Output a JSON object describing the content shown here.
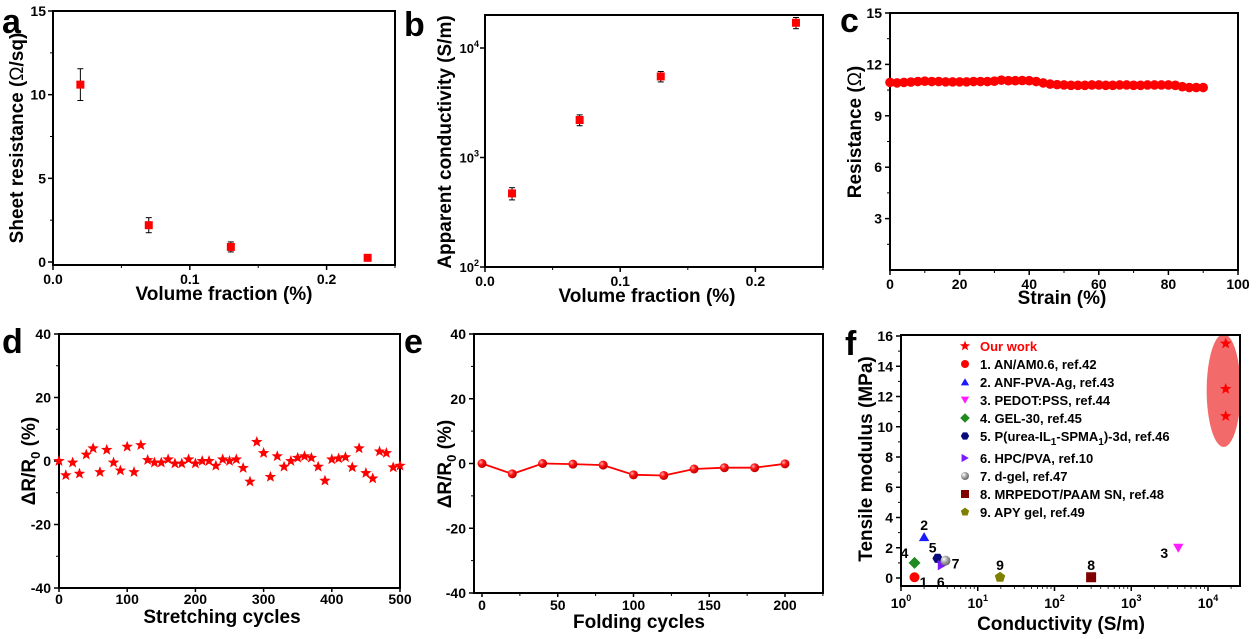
{
  "chart_data": [
    {
      "panel": "a",
      "type": "scatter",
      "title": "",
      "xlabel": "Volume fraction (%)",
      "ylabel": "Sheet resistance (Ω/sq)",
      "xlim": [
        0,
        0.25
      ],
      "ylim": [
        0,
        15
      ],
      "xticks": [
        0.0,
        0.1,
        0.2
      ],
      "xtick_labels": [
        "0.0",
        "0.1",
        "0.2"
      ],
      "yticks": [
        0,
        5,
        10,
        15
      ],
      "ytick_labels": [
        "0",
        "5",
        "10",
        "15"
      ],
      "x": [
        0.02,
        0.07,
        0.13,
        0.23
      ],
      "y": [
        10.6,
        2.2,
        0.9,
        0.25
      ],
      "yerr": [
        0.95,
        0.45,
        0.3,
        0.15
      ],
      "marker": "square",
      "color": "#ff0000"
    },
    {
      "panel": "b",
      "type": "scatter",
      "title": "",
      "xlabel": "Volume fraction (%)",
      "ylabel": "Apparent conductivity (S/m)",
      "yscale": "log",
      "xlim": [
        0,
        0.25
      ],
      "ylim": [
        100,
        20000
      ],
      "xticks": [
        0.0,
        0.1,
        0.2
      ],
      "xtick_labels": [
        "0.0",
        "0.1",
        "0.2"
      ],
      "yticks": [
        100,
        1000,
        10000
      ],
      "ytick_labels": [
        [
          "10",
          "2"
        ],
        [
          "10",
          "3"
        ],
        [
          "10",
          "4"
        ]
      ],
      "x": [
        0.02,
        0.07,
        0.13,
        0.23
      ],
      "y": [
        470,
        2200,
        5500,
        17000
      ],
      "yerr_low": [
        410,
        1950,
        4900,
        15000
      ],
      "yerr_high": [
        530,
        2450,
        6100,
        19000
      ],
      "marker": "square",
      "color": "#ff0000"
    },
    {
      "panel": "c",
      "type": "scatter",
      "title": "",
      "xlabel": "Strain (%)",
      "ylabel": "Resistance (Ω)",
      "xlim": [
        0,
        100
      ],
      "ylim": [
        0,
        15
      ],
      "xticks": [
        0,
        20,
        40,
        60,
        80,
        100
      ],
      "xtick_labels": [
        "0",
        "20",
        "40",
        "60",
        "80",
        "100"
      ],
      "yticks": [
        3,
        6,
        9,
        12,
        15
      ],
      "ytick_labels": [
        "3",
        "6",
        "9",
        "12",
        "15"
      ],
      "x": [
        0,
        2,
        4,
        6,
        8,
        10,
        12,
        14,
        16,
        18,
        20,
        22,
        24,
        26,
        28,
        30,
        32,
        34,
        36,
        38,
        40,
        42,
        44,
        46,
        48,
        50,
        52,
        54,
        56,
        58,
        60,
        62,
        64,
        66,
        68,
        70,
        72,
        74,
        76,
        78,
        80,
        82,
        84,
        86,
        88,
        90
      ],
      "y": [
        10.95,
        10.92,
        10.95,
        10.97,
        11.0,
        11.02,
        11.0,
        11.0,
        10.98,
        10.98,
        10.98,
        10.98,
        11.0,
        11.0,
        11.0,
        11.02,
        11.08,
        11.05,
        11.05,
        11.06,
        11.05,
        11.0,
        10.92,
        10.85,
        10.82,
        10.8,
        10.78,
        10.78,
        10.78,
        10.8,
        10.8,
        10.78,
        10.78,
        10.8,
        10.8,
        10.78,
        10.78,
        10.8,
        10.8,
        10.8,
        10.8,
        10.78,
        10.7,
        10.65,
        10.65,
        10.65
      ],
      "marker": "circle",
      "color": "#ff0000"
    },
    {
      "panel": "d",
      "type": "scatter",
      "title": "",
      "xlabel": "Stretching cycles",
      "ylabel": "ΔR/R0 (%)",
      "xlim": [
        0,
        500
      ],
      "ylim": [
        -40,
        40
      ],
      "xticks": [
        0,
        100,
        200,
        300,
        400,
        500
      ],
      "xtick_labels": [
        "0",
        "100",
        "200",
        "300",
        "400",
        "500"
      ],
      "yticks": [
        -40,
        -20,
        0,
        20,
        40
      ],
      "ytick_labels": [
        "-40",
        "-20",
        "0",
        "20",
        "40"
      ],
      "x": [
        0,
        10,
        20,
        30,
        40,
        50,
        60,
        70,
        80,
        90,
        100,
        110,
        120,
        130,
        140,
        150,
        160,
        170,
        180,
        190,
        200,
        210,
        220,
        230,
        240,
        250,
        260,
        270,
        280,
        290,
        300,
        310,
        320,
        330,
        340,
        350,
        360,
        370,
        380,
        390,
        400,
        410,
        420,
        430,
        440,
        450,
        460,
        470,
        480,
        490,
        500
      ],
      "y": [
        0,
        -4.5,
        -0.5,
        -4,
        2,
        4,
        -3.5,
        3.5,
        -0.5,
        -3,
        4.5,
        -3.5,
        5,
        0.3,
        -0.5,
        -0.5,
        0.5,
        -0.8,
        -0.8,
        0.5,
        -0.8,
        0,
        0,
        -1.5,
        0.5,
        0,
        0.5,
        -2.2,
        -6.5,
        6,
        2.5,
        -5,
        1.5,
        -1.8,
        0,
        1,
        1.5,
        1,
        -1.8,
        -6.2,
        0.5,
        0.8,
        1.2,
        -2,
        4,
        -3.8,
        -5.5,
        3,
        2.5,
        -2,
        -1.5
      ],
      "marker": "star",
      "color": "#ff0000"
    },
    {
      "panel": "e",
      "type": "line",
      "title": "",
      "xlabel": "Folding cycles",
      "ylabel": "ΔR/R0 (%)",
      "xlim": [
        -8,
        225
      ],
      "ylim": [
        -40,
        40
      ],
      "xticks": [
        0,
        50,
        100,
        150,
        200
      ],
      "xtick_labels": [
        "0",
        "50",
        "100",
        "150",
        "200"
      ],
      "yticks": [
        -40,
        -20,
        0,
        20,
        40
      ],
      "ytick_labels": [
        "-40",
        "-20",
        "0",
        "20",
        "40"
      ],
      "x": [
        0,
        20,
        40,
        60,
        80,
        100,
        120,
        140,
        160,
        180,
        200
      ],
      "y": [
        0,
        -3.2,
        0,
        -0.2,
        -0.5,
        -3.5,
        -3.7,
        -1.7,
        -1.3,
        -1.3,
        -0.1
      ],
      "marker": "circle",
      "color": "#ff0000"
    },
    {
      "panel": "f",
      "type": "scatter",
      "title": "",
      "xlabel": "Conductivity (S/m)",
      "ylabel": "Tensile modulus (MPa)",
      "xscale": "log",
      "xlim": [
        1,
        25000
      ],
      "ylim": [
        -0.6,
        16
      ],
      "xticks": [
        1,
        10,
        100,
        1000,
        10000
      ],
      "xtick_labels": [
        [
          "10",
          "0"
        ],
        [
          "10",
          "1"
        ],
        [
          "10",
          "2"
        ],
        [
          "10",
          "3"
        ],
        [
          "10",
          "4"
        ]
      ],
      "yticks": [
        0,
        2,
        4,
        6,
        8,
        10,
        12,
        14,
        16
      ],
      "ytick_labels": [
        "0",
        "2",
        "4",
        "6",
        "8",
        "10",
        "12",
        "14",
        "16"
      ],
      "legend_position": "top-left",
      "highlight_region": {
        "label": "Our work",
        "x_center": 16000,
        "y_range": [
          8.8,
          16
        ],
        "color": "#f25a5a"
      },
      "series": [
        {
          "name": "Our work",
          "label": "",
          "marker": "star",
          "color": "#ff0000",
          "x": [
            17000,
            17000,
            17000
          ],
          "y": [
            15.5,
            12.5,
            10.7
          ]
        },
        {
          "name": "1. AN/AM0.6, ref.42",
          "label": "1",
          "marker": "circle",
          "color": "#ff0000",
          "x": [
            1.5
          ],
          "y": [
            0.05
          ]
        },
        {
          "name": "2. ANF-PVA-Ag, ref.43",
          "label": "2",
          "marker": "triangle-up",
          "color": "#1a1aff",
          "x": [
            2.0
          ],
          "y": [
            2.7
          ]
        },
        {
          "name": "3. PEDOT:PSS, ref.44",
          "label": "3",
          "marker": "triangle-down",
          "color": "#ff1aff",
          "x": [
            4100
          ],
          "y": [
            2.0
          ]
        },
        {
          "name": "4. GEL-30, ref.45",
          "label": "4",
          "marker": "diamond",
          "color": "#1f8a1f",
          "x": [
            1.5
          ],
          "y": [
            1.0
          ]
        },
        {
          "name": "5. P(urea-IL1-SPMA1)-3d, ref.46",
          "label": "5",
          "marker": "hexagon",
          "color": "#0a0a7a",
          "x": [
            3.0
          ],
          "y": [
            1.3
          ]
        },
        {
          "name": "6. HPC/PVA, ref.10",
          "label": "6",
          "marker": "triangle-right",
          "color": "#7a1aff",
          "x": [
            3.4
          ],
          "y": [
            0.85
          ]
        },
        {
          "name": "7. d-gel, ref.47",
          "label": "7",
          "marker": "sphere",
          "color": "#9a9a9a",
          "x": [
            3.8
          ],
          "y": [
            1.15
          ]
        },
        {
          "name": "8. MRPEDOT/PAAM SN, ref.48",
          "label": "8",
          "marker": "square",
          "color": "#800000",
          "x": [
            300
          ],
          "y": [
            0.05
          ]
        },
        {
          "name": "9. APY gel, ref.49",
          "label": "9",
          "marker": "pentagon",
          "color": "#808000",
          "x": [
            19.5
          ],
          "y": [
            0.05
          ]
        }
      ]
    }
  ],
  "panel_labels": [
    "a",
    "b",
    "c",
    "d",
    "e",
    "f"
  ],
  "legend_f": {
    "our_work": "Our work",
    "entries": [
      {
        "pre": "1. AN/AM0.6, ref.42"
      },
      {
        "pre": "2. ANF-PVA-Ag, ref.43"
      },
      {
        "pre": "3. PEDOT:PSS, ref.44"
      },
      {
        "pre": "4. GEL-30, ref.45"
      },
      {
        "pre": "5. P(urea-IL",
        "sub1": "1",
        "mid": "-SPMA",
        "sub2": "1",
        "post": ")-3d, ref.46"
      },
      {
        "pre": "6. HPC/PVA, ref.10"
      },
      {
        "pre": "7. d-gel, ref.47"
      },
      {
        "pre": "8. MRPEDOT/PAAM SN, ref.48"
      },
      {
        "pre": "9. APY gel, ref.49"
      }
    ]
  },
  "axis_text": {
    "a_ylabel_pre": "Sheet resistance (",
    "a_ylabel_omega": "Ω",
    "a_ylabel_post": "/sq)",
    "c_ylabel_pre": "Resistance (",
    "c_ylabel_omega": "Ω",
    "c_ylabel_post": ")",
    "dr_pre": "ΔR/R",
    "dr_sub": "0",
    "dr_post": " (%)"
  }
}
